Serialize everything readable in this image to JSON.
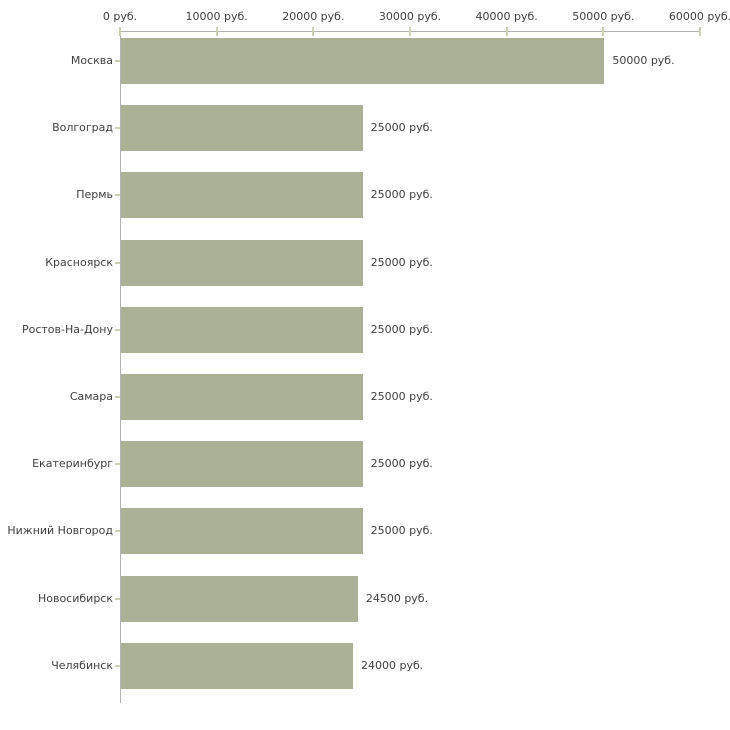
{
  "chart_data": {
    "type": "bar",
    "orientation": "horizontal",
    "title": "",
    "xlabel": "",
    "ylabel": "",
    "xlim": [
      0,
      60000
    ],
    "grid": false,
    "legend": false,
    "categories": [
      "Москва",
      "Волгоград",
      "Пермь",
      "Красноярск",
      "Ростов-На-Дону",
      "Самара",
      "Екатеринбург",
      "Нижний Новгород",
      "Новосибирск",
      "Челябинск"
    ],
    "values": [
      50000,
      25000,
      25000,
      25000,
      25000,
      25000,
      25000,
      25000,
      24500,
      24000
    ],
    "value_labels": [
      "50000 руб.",
      "25000 руб.",
      "25000 руб.",
      "25000 руб.",
      "25000 руб.",
      "25000 руб.",
      "25000 руб.",
      "25000 руб.",
      "24500 руб.",
      "24000 руб."
    ],
    "x_ticks": [
      {
        "value": 0,
        "label": "0 руб."
      },
      {
        "value": 10000,
        "label": "10000 руб."
      },
      {
        "value": 20000,
        "label": "20000 руб."
      },
      {
        "value": 30000,
        "label": "30000 руб."
      },
      {
        "value": 40000,
        "label": "40000 руб."
      },
      {
        "value": 50000,
        "label": "50000 руб."
      },
      {
        "value": 60000,
        "label": "60000 руб."
      }
    ],
    "colors": {
      "bar": "#aab197",
      "axis_line": "#b3b3b3",
      "tick": "#ccd0b4",
      "text": "#3f3f3f",
      "background": "#ffffff"
    }
  }
}
